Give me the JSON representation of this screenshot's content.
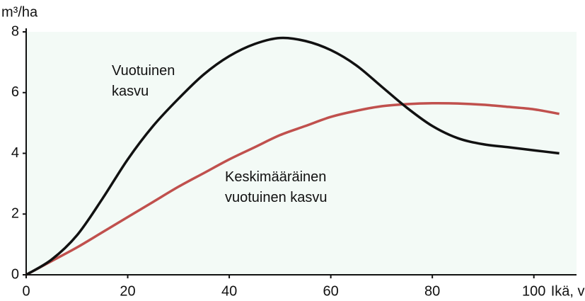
{
  "chart_data": {
    "type": "line",
    "y_label": "m³/ha",
    "x_label": "Ikä, v",
    "x": [
      0,
      5,
      10,
      15,
      20,
      25,
      30,
      35,
      40,
      45,
      50,
      55,
      60,
      65,
      70,
      75,
      80,
      85,
      90,
      95,
      100,
      105
    ],
    "series": [
      {
        "name": "Vuotuinen kasvu",
        "color": "#111111",
        "values": [
          0,
          0.5,
          1.3,
          2.5,
          3.8,
          4.9,
          5.8,
          6.6,
          7.2,
          7.6,
          7.8,
          7.7,
          7.4,
          6.9,
          6.2,
          5.5,
          4.9,
          4.5,
          4.3,
          4.2,
          4.1,
          4.0
        ]
      },
      {
        "name": "Keskimääräinen vuotuinen kasvu",
        "color": "#c0504d",
        "values": [
          0,
          0.45,
          0.9,
          1.4,
          1.9,
          2.4,
          2.9,
          3.35,
          3.8,
          4.2,
          4.6,
          4.9,
          5.2,
          5.4,
          5.55,
          5.62,
          5.65,
          5.64,
          5.6,
          5.53,
          5.45,
          5.3
        ]
      }
    ],
    "xlim": [
      0,
      108.4
    ],
    "xticks": [
      0,
      20,
      40,
      60,
      80,
      100
    ],
    "ylim": [
      0,
      8
    ],
    "yticks": [
      0,
      2,
      4,
      6,
      8
    ]
  }
}
